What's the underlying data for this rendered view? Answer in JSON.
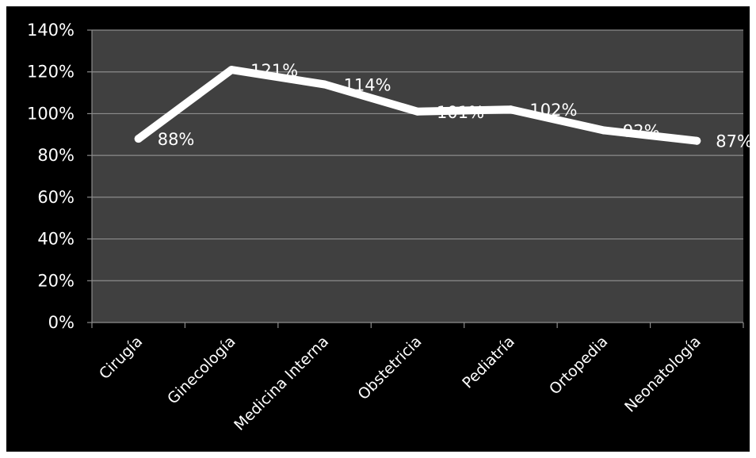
{
  "chart_data": {
    "type": "line",
    "categories": [
      "Cirugía",
      "Ginecología",
      "Medicina Interna",
      "Obstetricia",
      "Pediatría",
      "Ortopedia",
      "Neonatología"
    ],
    "series": [
      {
        "values": [
          88,
          121,
          114,
          101,
          102,
          92,
          87
        ]
      }
    ],
    "data_labels": [
      "88%",
      "121%",
      "114%",
      "101%",
      "102%",
      "92%",
      "87%"
    ],
    "y_ticks": [
      "0%",
      "20%",
      "40%",
      "60%",
      "80%",
      "100%",
      "120%",
      "140%"
    ],
    "ylim": [
      0,
      140
    ],
    "y_step": 20,
    "grid": true,
    "legend": "none",
    "colors": {
      "background": "#000000",
      "plot_area": "#404040",
      "line": "#ffffff",
      "grid": "#8c8c8c",
      "text": "#ffffff"
    }
  }
}
